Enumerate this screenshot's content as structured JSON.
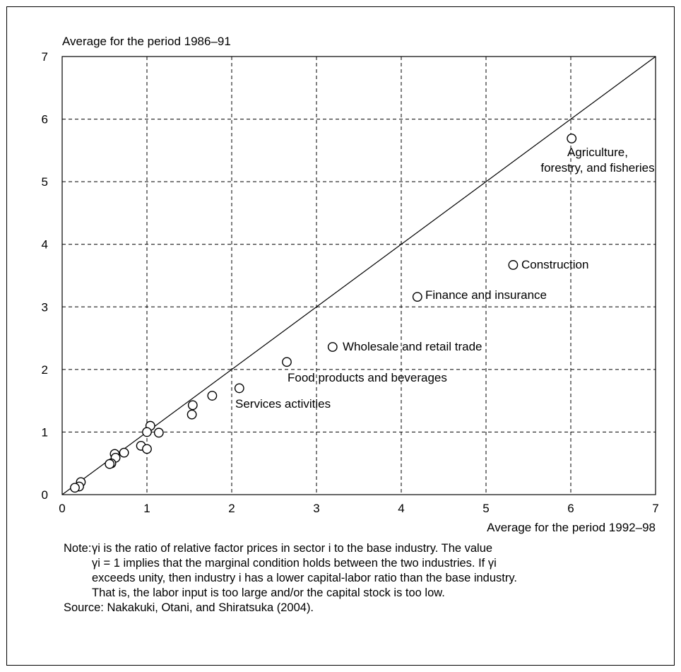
{
  "chart_data": {
    "type": "scatter",
    "ylabel": "Average for the period 1986–91",
    "xlabel": "Average for the period 1992–98",
    "xlim": [
      0,
      7
    ],
    "ylim": [
      0,
      7
    ],
    "x_ticks": [
      "0",
      "1",
      "2",
      "3",
      "4",
      "5",
      "6",
      "7"
    ],
    "y_ticks": [
      "0",
      "1",
      "2",
      "3",
      "4",
      "5",
      "6",
      "7"
    ],
    "grid": true,
    "reference_line": "45-degree line (y = x)",
    "points": [
      {
        "x": 6.01,
        "y": 5.69
      },
      {
        "x": 5.32,
        "y": 3.67
      },
      {
        "x": 4.19,
        "y": 3.16
      },
      {
        "x": 3.19,
        "y": 2.36
      },
      {
        "x": 2.65,
        "y": 2.12
      },
      {
        "x": 2.09,
        "y": 1.7
      },
      {
        "x": 1.77,
        "y": 1.58
      },
      {
        "x": 1.54,
        "y": 1.43
      },
      {
        "x": 1.53,
        "y": 1.28
      },
      {
        "x": 1.04,
        "y": 1.1
      },
      {
        "x": 1.0,
        "y": 1.0
      },
      {
        "x": 1.14,
        "y": 0.99
      },
      {
        "x": 0.93,
        "y": 0.78
      },
      {
        "x": 1.0,
        "y": 0.73
      },
      {
        "x": 0.73,
        "y": 0.67
      },
      {
        "x": 0.62,
        "y": 0.65
      },
      {
        "x": 0.63,
        "y": 0.59
      },
      {
        "x": 0.58,
        "y": 0.5
      },
      {
        "x": 0.56,
        "y": 0.49
      },
      {
        "x": 0.22,
        "y": 0.2
      },
      {
        "x": 0.2,
        "y": 0.13
      },
      {
        "x": 0.15,
        "y": 0.11
      }
    ],
    "annotations": [
      {
        "lines": [
          "Agriculture,",
          "forestry, and fisheries"
        ]
      },
      {
        "lines": [
          "Construction"
        ]
      },
      {
        "lines": [
          "Finance and insurance"
        ]
      },
      {
        "lines": [
          "Wholesale and retail trade"
        ]
      },
      {
        "lines": [
          "Food products and beverages"
        ]
      },
      {
        "lines": [
          "Services activities"
        ]
      }
    ]
  },
  "note": {
    "prefix": "Note:",
    "lines": [
      "γi is the ratio of relative factor prices in sector i to the base industry. The value",
      "γi = 1 implies that the marginal condition holds between the two industries. If γi",
      "exceeds unity, then industry i has a lower capital-labor ratio than the base industry.",
      "That is, the labor input is too large and/or the capital stock is too low."
    ]
  },
  "source": "Source: Nakakuki, Otani, and Shiratsuka (2004)."
}
